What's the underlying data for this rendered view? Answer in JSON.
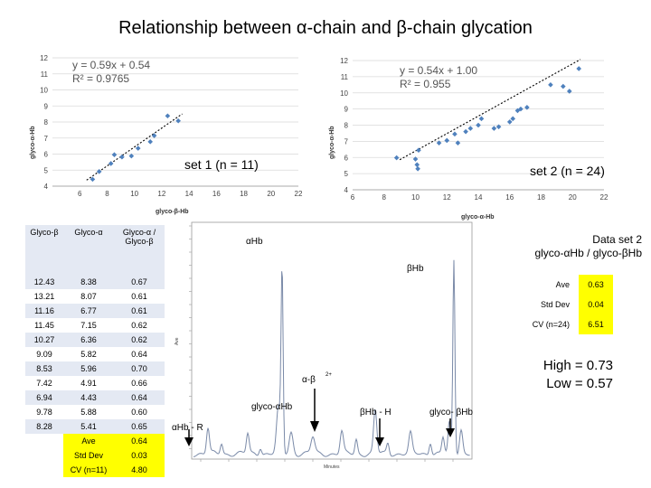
{
  "title": "Relationship between α-chain and β-chain glycation",
  "chart_data": [
    {
      "type": "scatter",
      "title": "",
      "xlabel": "glyco-β-Hb",
      "ylabel": "glyco-α-Hb",
      "xlim": [
        4,
        22
      ],
      "ylim": [
        4,
        12
      ],
      "xticks": [
        "6",
        "8",
        "10",
        "12",
        "14",
        "16",
        "18",
        "20",
        "22"
      ],
      "yticks": [
        "4",
        "5",
        "6",
        "7",
        "8",
        "9",
        "10",
        "11",
        "12"
      ],
      "equation": "y = 0.59x + 0.54",
      "r2": "R² = 0.9765",
      "set_label": "set 1 (n = 11)",
      "points": [
        [
          6.94,
          4.43
        ],
        [
          7.42,
          4.91
        ],
        [
          8.28,
          5.41
        ],
        [
          8.53,
          5.96
        ],
        [
          9.09,
          5.82
        ],
        [
          9.78,
          5.88
        ],
        [
          10.27,
          6.36
        ],
        [
          11.16,
          6.77
        ],
        [
          11.45,
          7.15
        ],
        [
          12.43,
          8.38
        ],
        [
          13.21,
          8.07
        ]
      ],
      "trendline": [
        [
          6.5,
          4.375
        ],
        [
          13.5,
          8.505
        ]
      ]
    },
    {
      "type": "scatter",
      "title": "",
      "xlabel": "glyco-α-Hb",
      "ylabel": "glyco-α-Hb",
      "xlim": [
        6,
        22
      ],
      "ylim": [
        4,
        12
      ],
      "xticks": [
        "6",
        "8",
        "10",
        "12",
        "14",
        "16",
        "18",
        "20",
        "22"
      ],
      "yticks": [
        "4",
        "5",
        "6",
        "7",
        "8",
        "9",
        "10",
        "11",
        "12"
      ],
      "equation": "y = 0.54x + 1.00",
      "r2": "R² = 0.955",
      "set_label": "set 2 (n = 24)",
      "points": [
        [
          8.8,
          5.98
        ],
        [
          10.0,
          5.9
        ],
        [
          10.1,
          5.55
        ],
        [
          10.15,
          5.3
        ],
        [
          10.2,
          6.45
        ],
        [
          11.5,
          6.9
        ],
        [
          12.0,
          7.05
        ],
        [
          12.5,
          7.45
        ],
        [
          12.7,
          6.9
        ],
        [
          13.2,
          7.6
        ],
        [
          13.5,
          7.8
        ],
        [
          14.0,
          8.0
        ],
        [
          14.2,
          8.4
        ],
        [
          15.0,
          7.8
        ],
        [
          15.3,
          7.9
        ],
        [
          16.0,
          8.2
        ],
        [
          16.2,
          8.4
        ],
        [
          16.5,
          8.9
        ],
        [
          16.7,
          9.0
        ],
        [
          17.1,
          9.1
        ],
        [
          18.6,
          10.5
        ],
        [
          19.4,
          10.4
        ],
        [
          19.8,
          10.1
        ],
        [
          20.4,
          11.5
        ]
      ],
      "trendline": [
        [
          9.0,
          5.86
        ],
        [
          20.5,
          12.07
        ]
      ]
    }
  ],
  "table1": {
    "headers": [
      "Glyco-β",
      "Glyco-α",
      "Glyco-α / Glyco-β"
    ],
    "rows": [
      [
        "12.43",
        "8.38",
        "0.67"
      ],
      [
        "13.21",
        "8.07",
        "0.61"
      ],
      [
        "11.16",
        "6.77",
        "0.61"
      ],
      [
        "11.45",
        "7.15",
        "0.62"
      ],
      [
        "10.27",
        "6.36",
        "0.62"
      ],
      [
        "9.09",
        "5.82",
        "0.64"
      ],
      [
        "8.53",
        "5.96",
        "0.70"
      ],
      [
        "7.42",
        "4.91",
        "0.66"
      ],
      [
        "6.94",
        "4.43",
        "0.64"
      ],
      [
        "9.78",
        "5.88",
        "0.60"
      ],
      [
        "8.28",
        "5.41",
        "0.65"
      ]
    ],
    "stats": [
      {
        "label": "Ave",
        "value": "0.64"
      },
      {
        "label": "Std Dev",
        "value": "0.03"
      },
      {
        "label": "CV (n=11)",
        "value": "4.80"
      }
    ]
  },
  "chromatogram": {
    "labels": {
      "alpha_hb": "αHb",
      "beta_hb": "βHb",
      "alpha_beta": "α-β",
      "glyco_alpha": "glyco-αHb",
      "beta_h": "βHb - H",
      "glyco_beta": "glyco- βHb",
      "alpha_r": "αHb - R",
      "y_axis": "Ave",
      "x_axis": "Minutes"
    }
  },
  "data_set2": {
    "title_line1": "Data set 2",
    "title_line2": "glyco-αHb / glyco-βHb",
    "stats": [
      {
        "label": "Ave",
        "value": "0.63"
      },
      {
        "label": "Std Dev",
        "value": "0.04"
      },
      {
        "label": "CV (n=24)",
        "value": "6.51"
      }
    ]
  },
  "range": {
    "high": "High = 0.73",
    "low": "Low = 0.57"
  }
}
